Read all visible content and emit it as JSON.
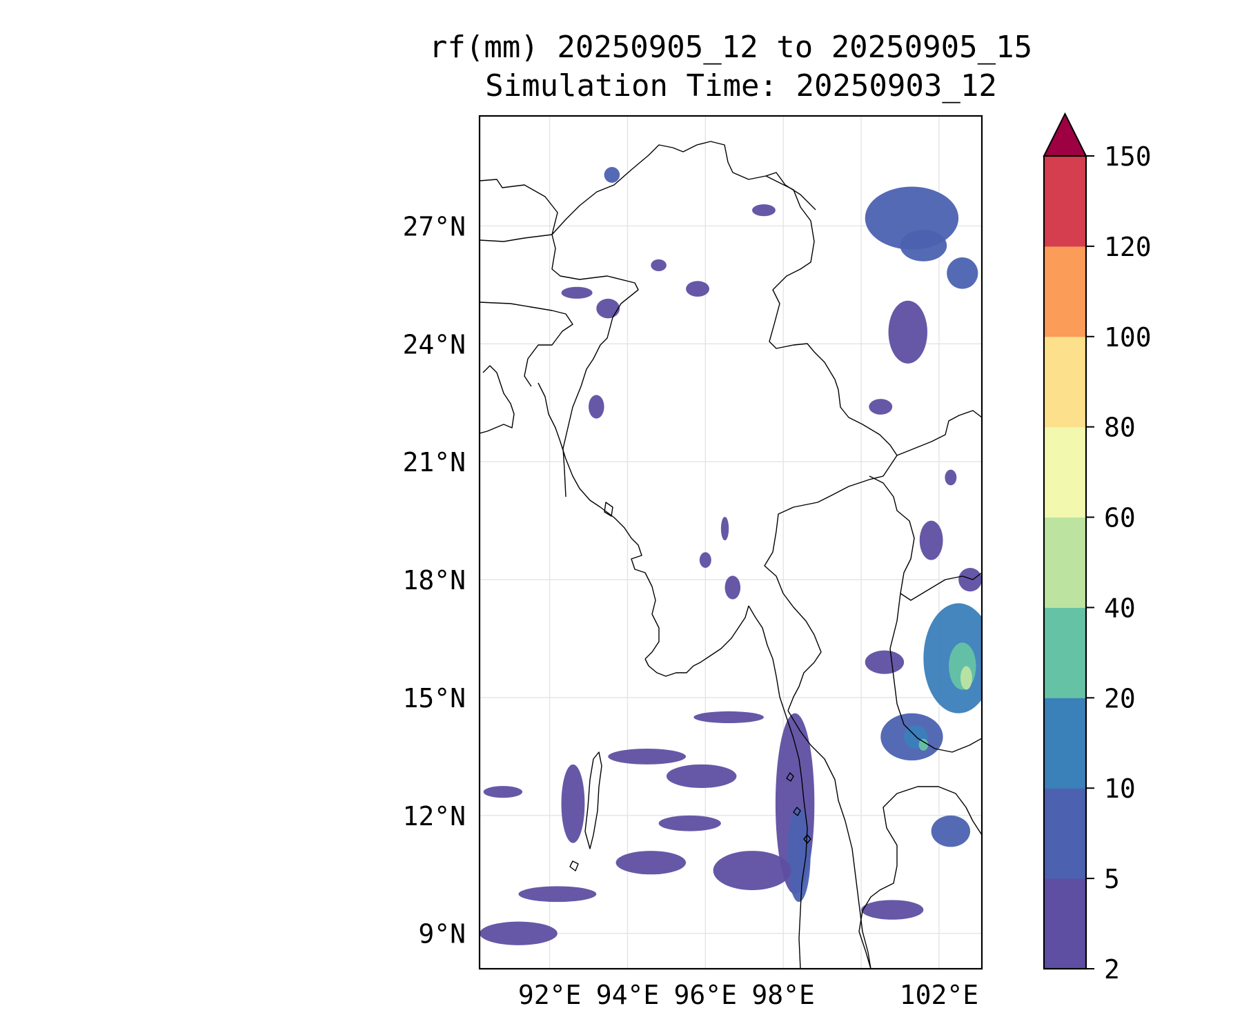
{
  "title": {
    "line1": "rf(mm) 20250905_12 to 20250905_15",
    "line2": "Simulation Time: 20250903_12"
  },
  "map": {
    "lon_range": [
      90.2,
      103.1
    ],
    "lat_range": [
      8.1,
      29.8
    ],
    "lat_ticks": [
      {
        "value": 27,
        "label": "27°N"
      },
      {
        "value": 24,
        "label": "24°N"
      },
      {
        "value": 21,
        "label": "21°N"
      },
      {
        "value": 18,
        "label": "18°N"
      },
      {
        "value": 15,
        "label": "15°N"
      },
      {
        "value": 12,
        "label": "12°N"
      },
      {
        "value": 9,
        "label": "9°N"
      }
    ],
    "lon_ticks": [
      {
        "value": 92,
        "label": "92°E"
      },
      {
        "value": 94,
        "label": "94°E"
      },
      {
        "value": 96,
        "label": "96°E"
      },
      {
        "value": 98,
        "label": "98°E"
      },
      {
        "value": 102,
        "label": "102°E"
      }
    ],
    "gridlines": true
  },
  "colorbar": {
    "levels": [
      2,
      5,
      10,
      20,
      40,
      60,
      80,
      100,
      120,
      150
    ],
    "labels": [
      "2",
      "5",
      "10",
      "20",
      "40",
      "60",
      "80",
      "100",
      "120",
      "150"
    ],
    "colors": [
      "#5e4fa2",
      "#4c62b0",
      "#3a80b9",
      "#66c2a5",
      "#bce4a0",
      "#f2f8ae",
      "#fde08b",
      "#fb9c58",
      "#d53e4f"
    ],
    "extend_color": "#9e0142",
    "extend": "max"
  },
  "rain_cells": [
    {
      "lon": 101.3,
      "lat": 27.2,
      "rx": 1.2,
      "ry": 0.8,
      "level": 1
    },
    {
      "lon": 101.6,
      "lat": 26.5,
      "rx": 0.6,
      "ry": 0.4,
      "level": 1
    },
    {
      "lon": 102.6,
      "lat": 25.8,
      "rx": 0.4,
      "ry": 0.4,
      "level": 1
    },
    {
      "lon": 101.2,
      "lat": 24.3,
      "rx": 0.5,
      "ry": 0.8,
      "level": 0
    },
    {
      "lon": 93.2,
      "lat": 22.4,
      "rx": 0.2,
      "ry": 0.3,
      "level": 0
    },
    {
      "lon": 92.7,
      "lat": 25.3,
      "rx": 0.4,
      "ry": 0.15,
      "level": 0
    },
    {
      "lon": 93.5,
      "lat": 24.9,
      "rx": 0.3,
      "ry": 0.25,
      "level": 0
    },
    {
      "lon": 93.6,
      "lat": 28.3,
      "rx": 0.2,
      "ry": 0.2,
      "level": 1
    },
    {
      "lon": 97.5,
      "lat": 27.4,
      "rx": 0.3,
      "ry": 0.15,
      "level": 0
    },
    {
      "lon": 102.5,
      "lat": 16.0,
      "rx": 0.9,
      "ry": 1.4,
      "level": 2
    },
    {
      "lon": 102.6,
      "lat": 15.8,
      "rx": 0.35,
      "ry": 0.6,
      "level": 3
    },
    {
      "lon": 102.7,
      "lat": 15.5,
      "rx": 0.15,
      "ry": 0.3,
      "level": 4
    },
    {
      "lon": 101.3,
      "lat": 14.0,
      "rx": 0.8,
      "ry": 0.6,
      "level": 1
    },
    {
      "lon": 101.4,
      "lat": 14.0,
      "rx": 0.3,
      "ry": 0.3,
      "level": 2
    },
    {
      "lon": 101.6,
      "lat": 13.8,
      "rx": 0.12,
      "ry": 0.15,
      "level": 3
    },
    {
      "lon": 100.6,
      "lat": 15.9,
      "rx": 0.5,
      "ry": 0.3,
      "level": 0
    },
    {
      "lon": 98.3,
      "lat": 12.3,
      "rx": 0.5,
      "ry": 2.3,
      "level": 0
    },
    {
      "lon": 98.4,
      "lat": 11.0,
      "rx": 0.3,
      "ry": 1.2,
      "level": 1
    },
    {
      "lon": 97.2,
      "lat": 10.6,
      "rx": 1.0,
      "ry": 0.5,
      "level": 0
    },
    {
      "lon": 95.9,
      "lat": 13.0,
      "rx": 0.9,
      "ry": 0.3,
      "level": 0
    },
    {
      "lon": 94.5,
      "lat": 13.5,
      "rx": 1.0,
      "ry": 0.2,
      "level": 0
    },
    {
      "lon": 94.6,
      "lat": 10.8,
      "rx": 0.9,
      "ry": 0.3,
      "level": 0
    },
    {
      "lon": 92.2,
      "lat": 10.0,
      "rx": 1.0,
      "ry": 0.2,
      "level": 0
    },
    {
      "lon": 91.2,
      "lat": 9.0,
      "rx": 1.0,
      "ry": 0.3,
      "level": 0
    },
    {
      "lon": 90.8,
      "lat": 12.6,
      "rx": 0.5,
      "ry": 0.15,
      "level": 0
    },
    {
      "lon": 92.6,
      "lat": 12.3,
      "rx": 0.3,
      "ry": 1.0,
      "level": 0
    },
    {
      "lon": 96.6,
      "lat": 14.5,
      "rx": 0.9,
      "ry": 0.15,
      "level": 0
    },
    {
      "lon": 95.6,
      "lat": 11.8,
      "rx": 0.8,
      "ry": 0.2,
      "level": 0
    },
    {
      "lon": 100.8,
      "lat": 9.6,
      "rx": 0.8,
      "ry": 0.25,
      "level": 0
    },
    {
      "lon": 102.3,
      "lat": 11.6,
      "rx": 0.5,
      "ry": 0.4,
      "level": 1
    },
    {
      "lon": 101.8,
      "lat": 19.0,
      "rx": 0.3,
      "ry": 0.5,
      "level": 0
    },
    {
      "lon": 102.8,
      "lat": 18.0,
      "rx": 0.3,
      "ry": 0.3,
      "level": 0
    },
    {
      "lon": 96.7,
      "lat": 17.8,
      "rx": 0.2,
      "ry": 0.3,
      "level": 0
    },
    {
      "lon": 96.0,
      "lat": 18.5,
      "rx": 0.15,
      "ry": 0.2,
      "level": 0
    },
    {
      "lon": 96.5,
      "lat": 19.3,
      "rx": 0.1,
      "ry": 0.3,
      "level": 0
    },
    {
      "lon": 94.8,
      "lat": 26.0,
      "rx": 0.2,
      "ry": 0.15,
      "level": 0
    },
    {
      "lon": 95.8,
      "lat": 25.4,
      "rx": 0.3,
      "ry": 0.2,
      "level": 0
    },
    {
      "lon": 100.5,
      "lat": 22.4,
      "rx": 0.3,
      "ry": 0.2,
      "level": 0
    },
    {
      "lon": 102.3,
      "lat": 20.6,
      "rx": 0.15,
      "ry": 0.2,
      "level": 0
    }
  ]
}
